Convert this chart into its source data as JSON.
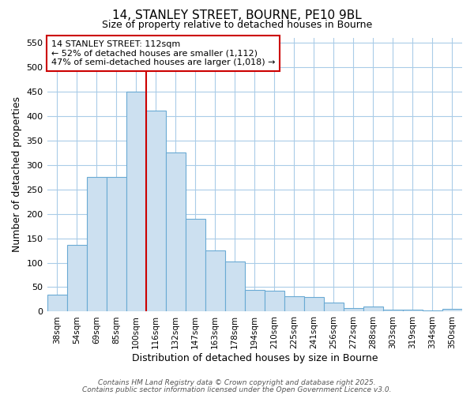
{
  "title1": "14, STANLEY STREET, BOURNE, PE10 9BL",
  "title2": "Size of property relative to detached houses in Bourne",
  "xlabel": "Distribution of detached houses by size in Bourne",
  "ylabel": "Number of detached properties",
  "categories": [
    "38sqm",
    "54sqm",
    "69sqm",
    "85sqm",
    "100sqm",
    "116sqm",
    "132sqm",
    "147sqm",
    "163sqm",
    "178sqm",
    "194sqm",
    "210sqm",
    "225sqm",
    "241sqm",
    "256sqm",
    "272sqm",
    "288sqm",
    "303sqm",
    "319sqm",
    "334sqm",
    "350sqm"
  ],
  "values": [
    35,
    137,
    275,
    275,
    450,
    410,
    325,
    190,
    125,
    103,
    45,
    43,
    32,
    30,
    18,
    8,
    10,
    4,
    4,
    3,
    5
  ],
  "bar_color": "#cce0f0",
  "bar_edge_color": "#6aaad4",
  "background_color": "#ffffff",
  "grid_color": "#aacce8",
  "red_line_x": 4.5,
  "annotation_line1": "14 STANLEY STREET: 112sqm",
  "annotation_line2": "← 52% of detached houses are smaller (1,112)",
  "annotation_line3": "47% of semi-detached houses are larger (1,018) →",
  "annotation_box_color": "#ffffff",
  "annotation_border_color": "#cc0000",
  "footer1": "Contains HM Land Registry data © Crown copyright and database right 2025.",
  "footer2": "Contains public sector information licensed under the Open Government Licence v3.0.",
  "ylim": [
    0,
    560
  ],
  "yticks": [
    0,
    50,
    100,
    150,
    200,
    250,
    300,
    350,
    400,
    450,
    500,
    550
  ]
}
